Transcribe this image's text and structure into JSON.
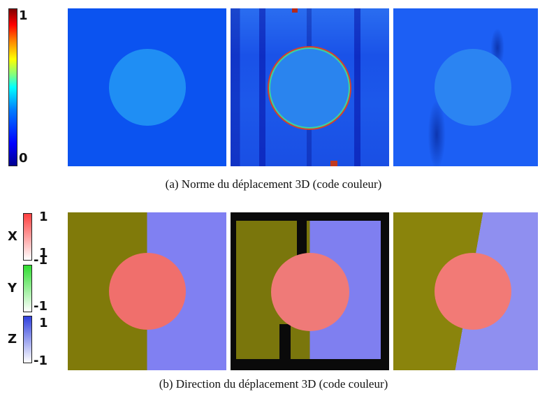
{
  "figure_a": {
    "caption": "(a) Norme du déplacement 3D (code couleur)",
    "colorbar": {
      "max_label": "1",
      "min_label": "0"
    },
    "panels": [
      {
        "name": "ground-truth",
        "background": "#0b53f0",
        "disk": "#1f8ef4"
      },
      {
        "name": "estimate-noisy",
        "background": "#1a53e8",
        "disk": "#2a84ee"
      },
      {
        "name": "estimate-smooth",
        "background": "#1c5ff4",
        "disk": "#2b84f2"
      }
    ]
  },
  "figure_b": {
    "caption": "(b) Direction du déplacement 3D (code couleur)",
    "colorbars": [
      {
        "axis": "X",
        "max_label": "1",
        "min_label": "-1",
        "color": "#ef2f2f"
      },
      {
        "axis": "Y",
        "max_label": "1",
        "min_label": "-1",
        "color": "#2fd82f"
      },
      {
        "axis": "Z",
        "max_label": "1",
        "min_label": "-1",
        "color": "#2f3fd8"
      }
    ],
    "panels": [
      {
        "name": "ground-truth",
        "left_color": "#807a0a",
        "right_color": "#8080f2",
        "disk": "#f06f6c"
      },
      {
        "name": "estimate-noisy",
        "left_color": "#7a760c",
        "right_color": "#7f7ff0",
        "disk": "#ef7a78"
      },
      {
        "name": "estimate-smooth",
        "left_color": "#8a840c",
        "right_color": "#8f8ff0",
        "disk": "#f27a76"
      }
    ]
  }
}
